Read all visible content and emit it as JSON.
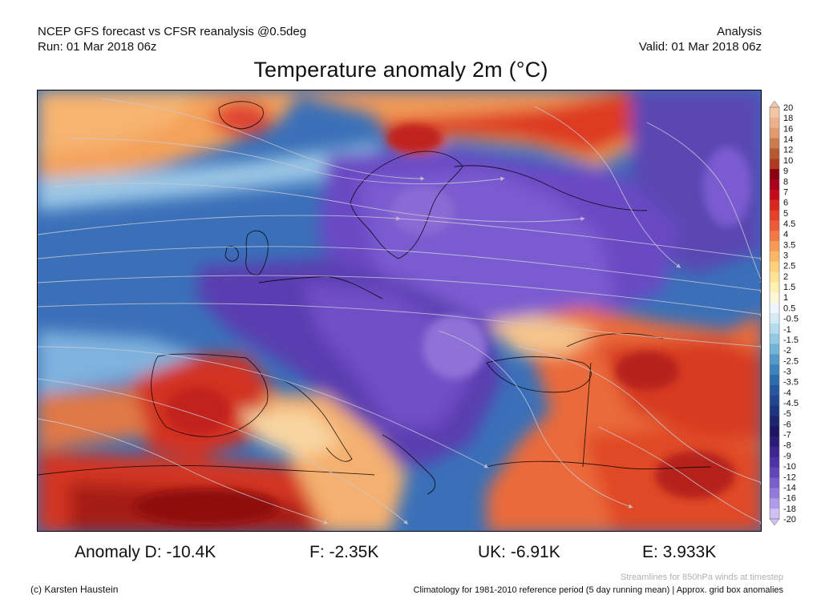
{
  "header": {
    "model_line": "NCEP GFS forecast vs CFSR reanalysis @0.5deg",
    "run_line": "Run: 01 Mar 2018 06z",
    "type_line": "Analysis",
    "valid_line": "Valid: 01 Mar 2018 06z"
  },
  "title": "Temperature anomaly 2m (°C)",
  "colorbar": {
    "labels": [
      "20",
      "18",
      "16",
      "14",
      "12",
      "10",
      "9",
      "8",
      "7",
      "6",
      "5",
      "4.5",
      "4",
      "3.5",
      "3",
      "2.5",
      "2",
      "1.5",
      "1",
      "0.5",
      "-0.5",
      "-1",
      "-1.5",
      "-2",
      "-2.5",
      "-3",
      "-3.5",
      "-4",
      "-4.5",
      "-5",
      "-6",
      "-7",
      "-8",
      "-9",
      "-10",
      "-12",
      "-14",
      "-16",
      "-18",
      "-20"
    ],
    "colors": [
      "#f4c6a7",
      "#eeb08c",
      "#e29a72",
      "#cc7a4f",
      "#b35a30",
      "#b03a22",
      "#8a0010",
      "#a8001c",
      "#c40b1c",
      "#d8271e",
      "#e5402a",
      "#ec5a38",
      "#f27845",
      "#f79a55",
      "#fbb766",
      "#fdd07c",
      "#fee395",
      "#fff0b4",
      "#fff8d8",
      "#eef6fb",
      "#d4ebf5",
      "#b4dcee",
      "#93c9e3",
      "#72b3d6",
      "#559ac8",
      "#3d82bb",
      "#2f6aad",
      "#27569f",
      "#214590",
      "#1d3580",
      "#1c256e",
      "#1e1462",
      "#2b1a78",
      "#3d2590",
      "#4f31a6",
      "#6244bb",
      "#7a5dcc",
      "#9479dc",
      "#b09be9",
      "#cfc0f5"
    ]
  },
  "anomalies": {
    "d": "Anomaly D: -10.4K",
    "f": "F: -2.35K",
    "uk": "UK: -6.91K",
    "e": "E: 3.933K"
  },
  "streamline_note": "Streamlines for 850hPa winds at timestep",
  "copyright": "(c) Karsten Haustein",
  "climatology_note": "Climatology for 1981-2010 reference period (5 day running mean) | Approx. grid box anomalies"
}
